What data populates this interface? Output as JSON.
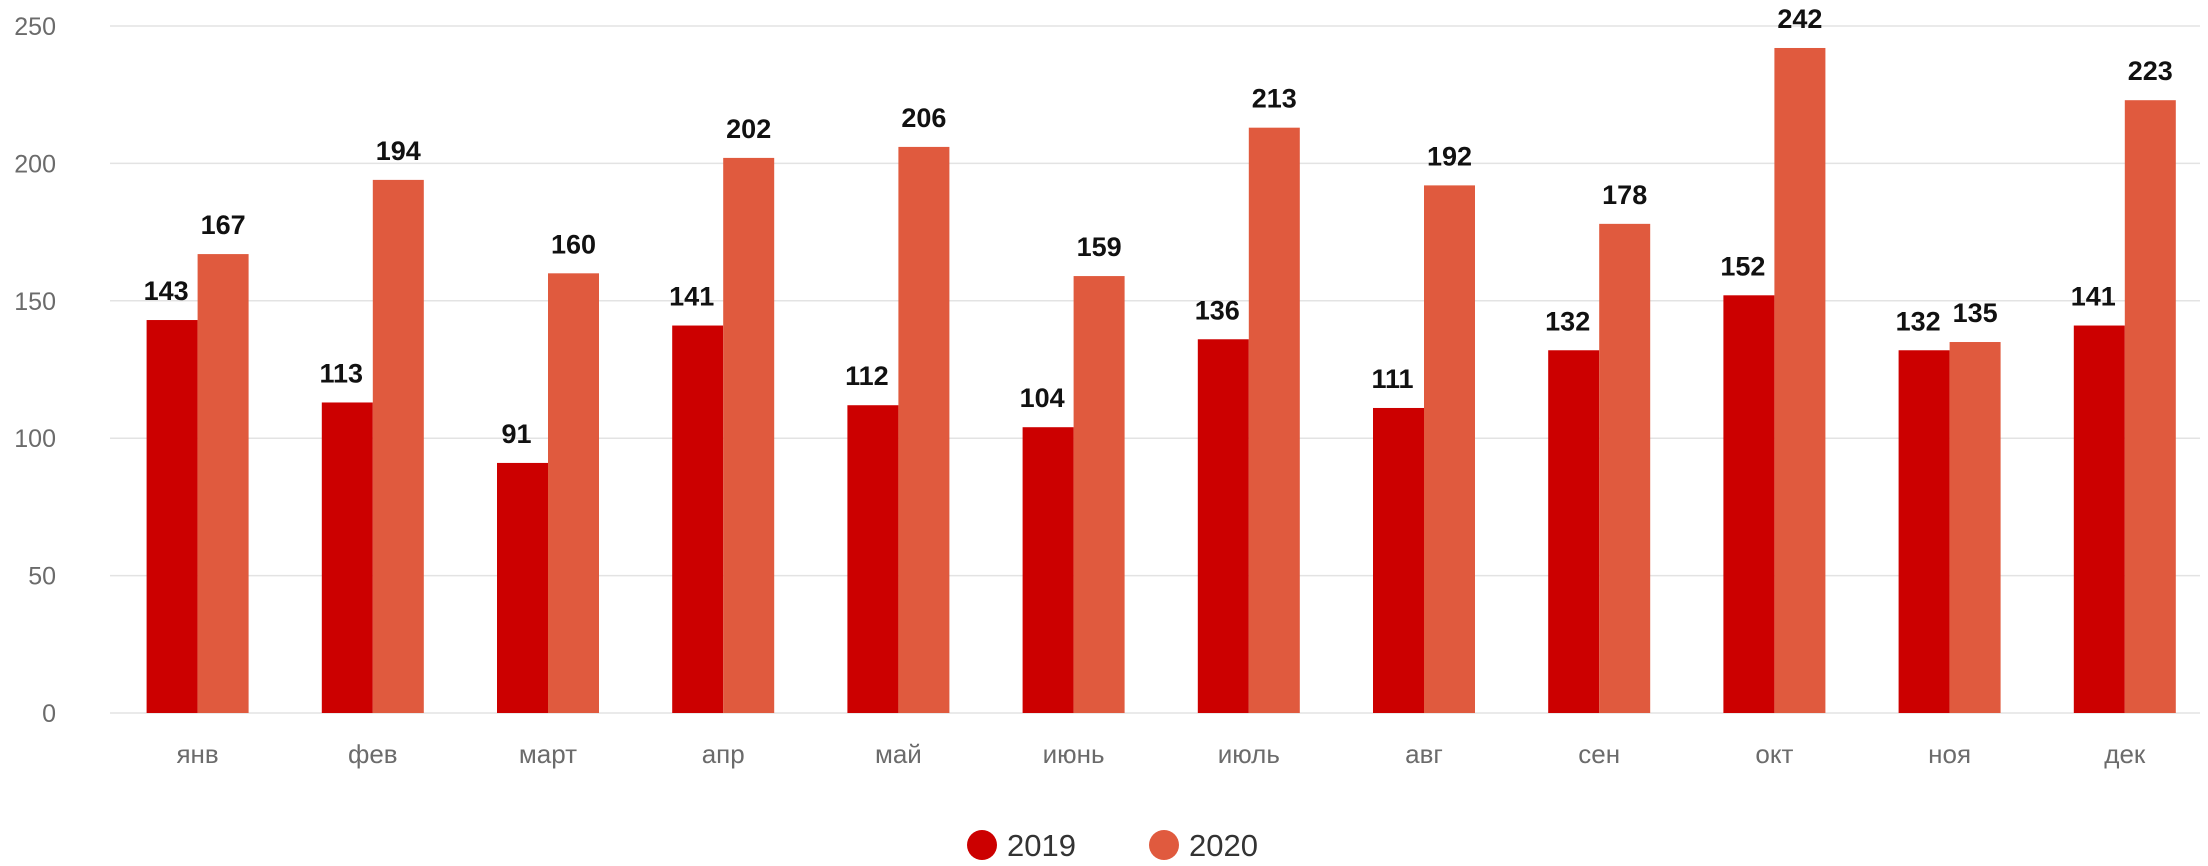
{
  "chart_data": {
    "type": "bar",
    "title": "",
    "xlabel": "",
    "ylabel": "",
    "ylim": [
      0,
      250
    ],
    "yticks": [
      0,
      50,
      100,
      150,
      200,
      250
    ],
    "grid": true,
    "legend_position": "bottom-center",
    "categories": [
      "янв",
      "фев",
      "март",
      "апр",
      "май",
      "июнь",
      "июль",
      "авг",
      "сен",
      "окт",
      "ноя",
      "дек"
    ],
    "series": [
      {
        "name": "2019",
        "color": "#cc0000",
        "values": [
          143,
          113,
          91,
          141,
          112,
          104,
          136,
          111,
          132,
          152,
          132,
          141
        ]
      },
      {
        "name": "2020",
        "color": "#e05a3e",
        "values": [
          167,
          194,
          160,
          202,
          206,
          159,
          213,
          192,
          178,
          242,
          135,
          223
        ]
      }
    ]
  }
}
